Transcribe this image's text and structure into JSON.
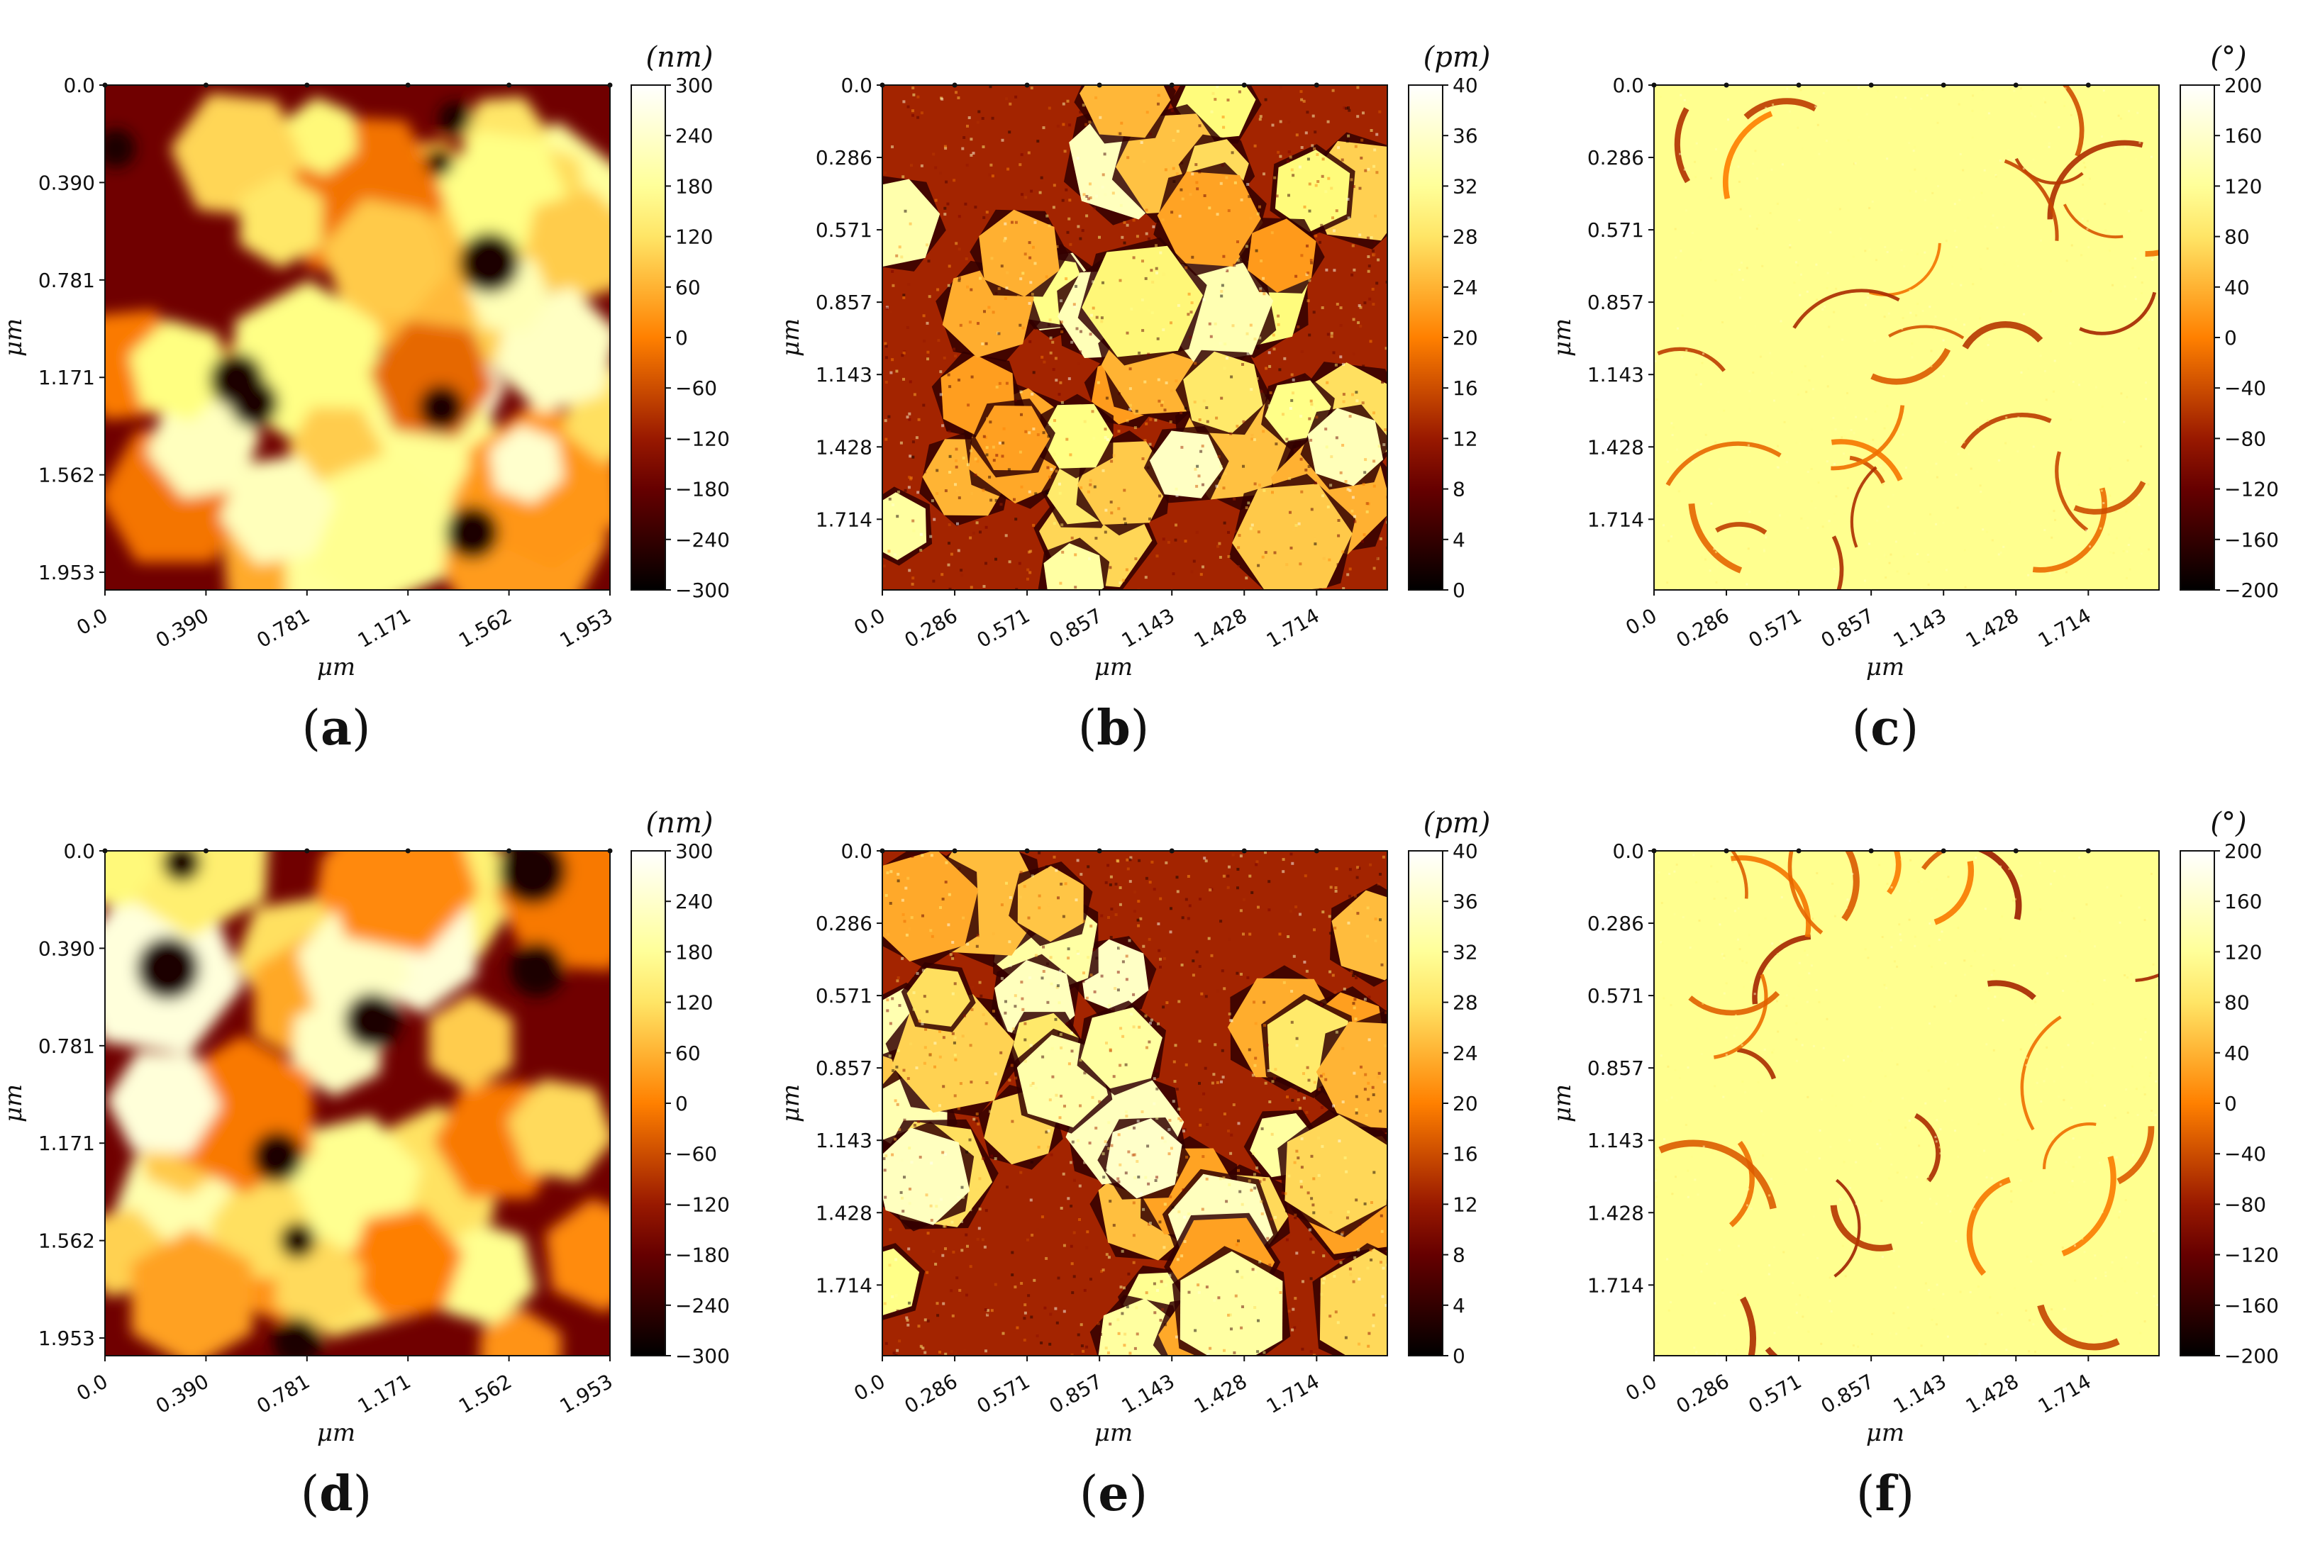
{
  "chart_data": [
    {
      "id": "a",
      "type": "heatmap",
      "caption_letter": "a",
      "colorscale": "afmhot",
      "xlabel": "μm",
      "ylabel": "μm",
      "xticks": [
        "0.0",
        "0.390",
        "0.781",
        "1.171",
        "1.562",
        "1.953"
      ],
      "yticks": [
        "0.0",
        "0.390",
        "0.781",
        "1.171",
        "1.562",
        "1.953"
      ],
      "colorbar": {
        "unit": "(nm)",
        "range": [
          -300,
          300
        ],
        "ticks": [
          "300",
          "240",
          "180",
          "120",
          "60",
          "0",
          "−60",
          "−120",
          "−180",
          "−240",
          "−300"
        ]
      },
      "texture": "height"
    },
    {
      "id": "b",
      "type": "heatmap",
      "caption_letter": "b",
      "colorscale": "afmhot",
      "xlabel": "μm",
      "ylabel": "μm",
      "xticks": [
        "0.0",
        "0.286",
        "0.571",
        "0.857",
        "1.143",
        "1.428",
        "1.714"
      ],
      "yticks": [
        "0.0",
        "0.286",
        "0.571",
        "0.857",
        "1.143",
        "1.428",
        "1.714"
      ],
      "colorbar": {
        "unit": "(pm)",
        "range": [
          0,
          40
        ],
        "ticks": [
          "40",
          "36",
          "32",
          "28",
          "24",
          "20",
          "16",
          "12",
          "8",
          "4",
          "0"
        ]
      },
      "texture": "amplitude"
    },
    {
      "id": "c",
      "type": "heatmap",
      "caption_letter": "c",
      "colorscale": "afmhot",
      "xlabel": "μm",
      "ylabel": "μm",
      "xticks": [
        "0.0",
        "0.286",
        "0.571",
        "0.857",
        "1.143",
        "1.428",
        "1.714"
      ],
      "yticks": [
        "0.0",
        "0.286",
        "0.571",
        "0.857",
        "1.143",
        "1.428",
        "1.714"
      ],
      "colorbar": {
        "unit": "(°)",
        "range": [
          -200,
          200
        ],
        "ticks": [
          "200",
          "160",
          "120",
          "80",
          "40",
          "0",
          "−40",
          "−80",
          "−120",
          "−160",
          "−200"
        ]
      },
      "texture": "phase"
    },
    {
      "id": "d",
      "type": "heatmap",
      "caption_letter": "d",
      "colorscale": "afmhot",
      "xlabel": "μm",
      "ylabel": "μm",
      "xticks": [
        "0.0",
        "0.390",
        "0.781",
        "1.171",
        "1.562",
        "1.953"
      ],
      "yticks": [
        "0.0",
        "0.390",
        "0.781",
        "1.171",
        "1.562",
        "1.953"
      ],
      "colorbar": {
        "unit": "(nm)",
        "range": [
          -300,
          300
        ],
        "ticks": [
          "300",
          "240",
          "180",
          "120",
          "60",
          "0",
          "−60",
          "−120",
          "−180",
          "−240",
          "−300"
        ]
      },
      "texture": "height"
    },
    {
      "id": "e",
      "type": "heatmap",
      "caption_letter": "e",
      "colorscale": "afmhot",
      "xlabel": "μm",
      "ylabel": "μm",
      "xticks": [
        "0.0",
        "0.286",
        "0.571",
        "0.857",
        "1.143",
        "1.428",
        "1.714"
      ],
      "yticks": [
        "0.0",
        "0.286",
        "0.571",
        "0.857",
        "1.143",
        "1.428",
        "1.714"
      ],
      "colorbar": {
        "unit": "(pm)",
        "range": [
          0,
          40
        ],
        "ticks": [
          "40",
          "36",
          "32",
          "28",
          "24",
          "20",
          "16",
          "12",
          "8",
          "4",
          "0"
        ]
      },
      "texture": "amplitude"
    },
    {
      "id": "f",
      "type": "heatmap",
      "caption_letter": "f",
      "colorscale": "afmhot",
      "xlabel": "μm",
      "ylabel": "μm",
      "xticks": [
        "0.0",
        "0.286",
        "0.571",
        "0.857",
        "1.143",
        "1.428",
        "1.714"
      ],
      "yticks": [
        "0.0",
        "0.286",
        "0.571",
        "0.857",
        "1.143",
        "1.428",
        "1.714"
      ],
      "colorbar": {
        "unit": "(°)",
        "range": [
          -200,
          200
        ],
        "ticks": [
          "200",
          "160",
          "120",
          "80",
          "40",
          "0",
          "−40",
          "−80",
          "−120",
          "−160",
          "−200"
        ]
      },
      "texture": "phase"
    }
  ]
}
